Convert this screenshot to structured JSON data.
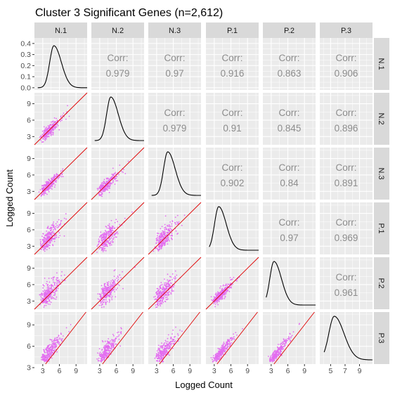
{
  "chart_data": {
    "type": "scatter",
    "title": "Cluster 3 Significant Genes (n=2,612)",
    "xlabel": "Logged Count",
    "ylabel": "Logged Count",
    "variables": [
      "N.1",
      "N.2",
      "N.3",
      "P.1",
      "P.2",
      "P.3"
    ],
    "corr_label": "Corr:",
    "correlations": [
      {
        "row": "N.1",
        "col": "N.2",
        "value": "0.979"
      },
      {
        "row": "N.1",
        "col": "N.3",
        "value": "0.97"
      },
      {
        "row": "N.1",
        "col": "P.1",
        "value": "0.916"
      },
      {
        "row": "N.1",
        "col": "P.2",
        "value": "0.863"
      },
      {
        "row": "N.1",
        "col": "P.3",
        "value": "0.906"
      },
      {
        "row": "N.2",
        "col": "N.3",
        "value": "0.979"
      },
      {
        "row": "N.2",
        "col": "P.1",
        "value": "0.91"
      },
      {
        "row": "N.2",
        "col": "P.2",
        "value": "0.845"
      },
      {
        "row": "N.2",
        "col": "P.3",
        "value": "0.896"
      },
      {
        "row": "N.3",
        "col": "P.1",
        "value": "0.902"
      },
      {
        "row": "N.3",
        "col": "P.2",
        "value": "0.84"
      },
      {
        "row": "N.3",
        "col": "P.3",
        "value": "0.891"
      },
      {
        "row": "P.1",
        "col": "P.2",
        "value": "0.97"
      },
      {
        "row": "P.1",
        "col": "P.3",
        "value": "0.969"
      },
      {
        "row": "P.2",
        "col": "P.3",
        "value": "0.961"
      }
    ],
    "x_ticks": [
      [
        "3",
        "6",
        "9"
      ],
      [
        "3",
        "6",
        "9"
      ],
      [
        "3",
        "6",
        "9"
      ],
      [
        "3",
        "6",
        "9"
      ],
      [
        "3",
        "6",
        "9"
      ],
      [
        "5",
        "7",
        "9"
      ]
    ],
    "y_ticks": [
      [
        "0.0",
        "0.1",
        "0.2",
        "0.3",
        "0.4"
      ],
      [
        "3",
        "6",
        "9"
      ],
      [
        "3",
        "6",
        "9"
      ],
      [
        "3",
        "6",
        "9"
      ],
      [
        "3",
        "6",
        "9"
      ],
      [
        "3",
        "6",
        "9"
      ]
    ],
    "axis_ranges": {
      "N.1": [
        1.5,
        11.0
      ],
      "N.2": [
        1.5,
        11.0
      ],
      "N.3": [
        1.5,
        11.0
      ],
      "P.1": [
        1.5,
        11.0
      ],
      "P.2": [
        1.5,
        11.0
      ],
      "P.3": [
        3.5,
        10.8
      ]
    },
    "density_ylim": [
      0,
      0.45
    ],
    "density_peaks": {
      "N.1": {
        "mode": 5.0,
        "height": 0.38
      },
      "N.2": {
        "mode": 5.0
      },
      "N.3": {
        "mode": 5.0
      },
      "P.1": {
        "mode": 3.8
      },
      "P.2": {
        "mode": 3.5
      },
      "P.3": {
        "mode": 5.5
      }
    },
    "point_color": "#e36ef0",
    "identity_line_color": "#e00000",
    "density_line_color": "#000000",
    "panel_background": "#ebebeb",
    "strip_background": "#d9d9d9",
    "grid": true
  }
}
